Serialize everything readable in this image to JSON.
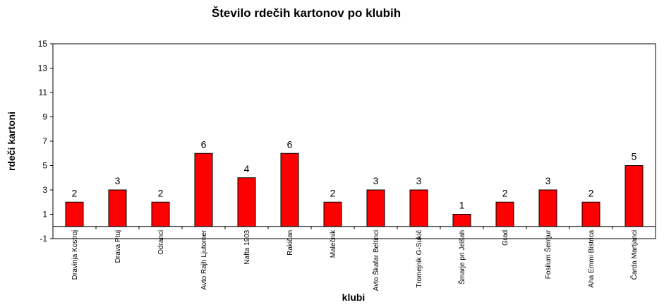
{
  "chart_data": {
    "type": "bar",
    "title": "Število rdečih kartonov po klubih",
    "xlabel": "klubi",
    "ylabel": "rdeči kartoni",
    "categories": [
      "Dravinja Kostroj",
      "Drava Ptuj",
      "Odranci",
      "Avto Rajh Ljutomer",
      "Nafta 1903",
      "Rakičan",
      "Malečnik",
      "Avto Škafar Beltinci",
      "Tromejnik G-Sukič",
      "Šmarje pri Jelšah",
      "Grad",
      "Fosilum Šentjur",
      "Aha Emmi Bistrica",
      "Čarda Martjanci"
    ],
    "values": [
      2,
      3,
      2,
      6,
      4,
      6,
      2,
      3,
      3,
      1,
      2,
      3,
      2,
      5
    ],
    "ylim": [
      -1,
      15
    ],
    "yticks": [
      -1,
      1,
      3,
      5,
      7,
      9,
      11,
      13,
      15
    ],
    "bar_color": "#ff0000",
    "grid": false,
    "legend": "none"
  }
}
